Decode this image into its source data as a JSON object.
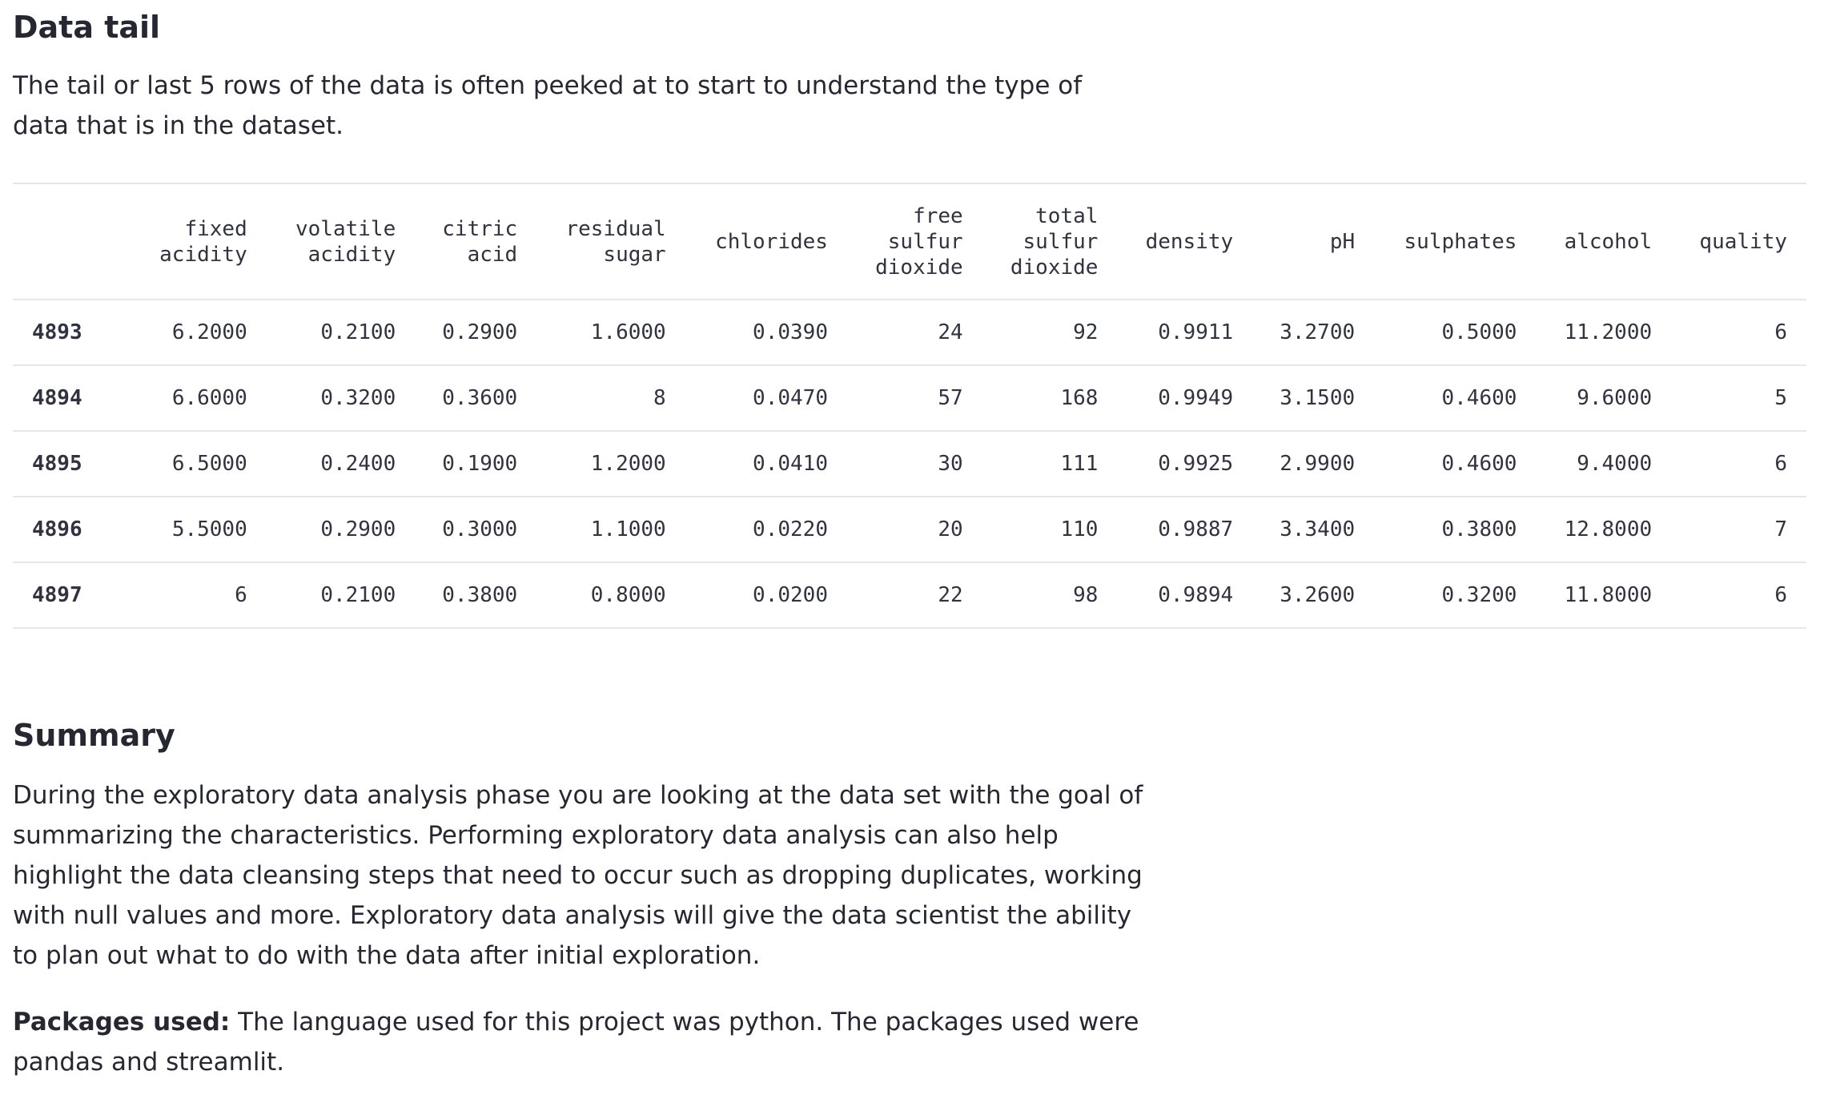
{
  "tail_section": {
    "heading": "Data tail",
    "description": "The tail or last 5 rows of the data is often peeked at to start to understand the type of data that is in the dataset."
  },
  "table": {
    "columns": [
      [
        "fixed",
        "acidity"
      ],
      [
        "volatile",
        "acidity"
      ],
      [
        "citric",
        "acid"
      ],
      [
        "residual",
        "sugar"
      ],
      [
        "chlorides"
      ],
      [
        "free",
        "sulfur",
        "dioxide"
      ],
      [
        "total",
        "sulfur",
        "dioxide"
      ],
      [
        "density"
      ],
      [
        "pH"
      ],
      [
        "sulphates"
      ],
      [
        "alcohol"
      ],
      [
        "quality"
      ]
    ],
    "rows": [
      {
        "index": "4893",
        "cells": [
          "6.2000",
          "0.2100",
          "0.2900",
          "1.6000",
          "0.0390",
          "24",
          "92",
          "0.9911",
          "3.2700",
          "0.5000",
          "11.2000",
          "6"
        ]
      },
      {
        "index": "4894",
        "cells": [
          "6.6000",
          "0.3200",
          "0.3600",
          "8",
          "0.0470",
          "57",
          "168",
          "0.9949",
          "3.1500",
          "0.4600",
          "9.6000",
          "5"
        ]
      },
      {
        "index": "4895",
        "cells": [
          "6.5000",
          "0.2400",
          "0.1900",
          "1.2000",
          "0.0410",
          "30",
          "111",
          "0.9925",
          "2.9900",
          "0.4600",
          "9.4000",
          "6"
        ]
      },
      {
        "index": "4896",
        "cells": [
          "5.5000",
          "0.2900",
          "0.3000",
          "1.1000",
          "0.0220",
          "20",
          "110",
          "0.9887",
          "3.3400",
          "0.3800",
          "12.8000",
          "7"
        ]
      },
      {
        "index": "4897",
        "cells": [
          "6",
          "0.2100",
          "0.3800",
          "0.8000",
          "0.0200",
          "22",
          "98",
          "0.9894",
          "3.2600",
          "0.3200",
          "11.8000",
          "6"
        ]
      }
    ]
  },
  "summary_section": {
    "heading": "Summary",
    "paragraph": "During the exploratory data analysis phase you are looking at the data set with the goal of summarizing the characteristics. Performing exploratory data analysis can also help highlight the data cleansing steps that need to occur such as dropping duplicates, working with null values and more. Exploratory data analysis will give the data scientist the ability to plan out what to do with the data after initial exploration.",
    "packages_label": "Packages used:",
    "packages_text": " The language used for this project was python. The packages used were pandas and streamlit."
  }
}
